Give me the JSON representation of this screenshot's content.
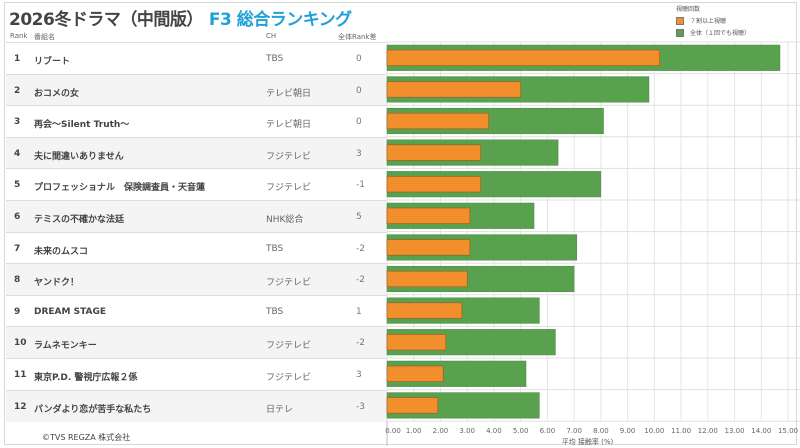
{
  "title": {
    "main": "2026冬ドラマ（中間版）",
    "accent": "F3 総合ランキング"
  },
  "columns": {
    "rank": "Rank",
    "name": "番組名",
    "ch": "CH",
    "diff": "全体Rank差"
  },
  "footer": "©TVS REGZA 株式会社",
  "colors": {
    "accent": "#1ea0d8",
    "orange": "#f28e2b",
    "green": "#59a14f"
  },
  "rows": [
    {
      "rank": "1",
      "name": "リブート",
      "ch": "TBS",
      "diff": "0"
    },
    {
      "rank": "2",
      "name": "おコメの女",
      "ch": "テレビ朝日",
      "diff": "0"
    },
    {
      "rank": "3",
      "name": "再会～Silent Truth～",
      "ch": "テレビ朝日",
      "diff": "0"
    },
    {
      "rank": "4",
      "name": "夫に間違いありません",
      "ch": "フジテレビ",
      "diff": "3"
    },
    {
      "rank": "5",
      "name": "プロフェッショナル　保険調査員・天音蓮",
      "ch": "フジテレビ",
      "diff": "-1"
    },
    {
      "rank": "6",
      "name": "テミスの不確かな法廷",
      "ch": "NHK総合",
      "diff": "5"
    },
    {
      "rank": "7",
      "name": "未来のムスコ",
      "ch": "TBS",
      "diff": "-2"
    },
    {
      "rank": "8",
      "name": "ヤンドク！",
      "ch": "フジテレビ",
      "diff": "-2"
    },
    {
      "rank": "9",
      "name": "DREAM STAGE",
      "ch": "TBS",
      "diff": "1"
    },
    {
      "rank": "10",
      "name": "ラムネモンキー",
      "ch": "フジテレビ",
      "diff": "-2"
    },
    {
      "rank": "11",
      "name": "東京P.D. 警視庁広報２係",
      "ch": "フジテレビ",
      "diff": "3"
    },
    {
      "rank": "12",
      "name": "パンダより恋が苦手な私たち",
      "ch": "日テレ",
      "diff": "-3"
    }
  ],
  "chart_data": {
    "type": "bar",
    "orientation": "horizontal",
    "categories": [
      "リブート",
      "おコメの女",
      "再会～Silent Truth～",
      "夫に間違いありません",
      "プロフェッショナル　保険調査員・天音蓮",
      "テミスの不確かな法廷",
      "未来のムスコ",
      "ヤンドク！",
      "DREAM STAGE",
      "ラムネモンキー",
      "東京P.D. 警視庁広報２係",
      "パンダより恋が苦手な私たち"
    ],
    "legend_title": "視聴回数",
    "legend_placement": "top-right",
    "series": [
      {
        "name": "全体（１回でも視聴）",
        "color": "#59a14f",
        "values": [
          14.7,
          9.8,
          8.1,
          6.4,
          8.0,
          5.5,
          7.1,
          7.0,
          5.7,
          6.3,
          5.2,
          5.7
        ]
      },
      {
        "name": "７割以上視聴",
        "color": "#f28e2b",
        "values": [
          10.2,
          5.0,
          3.8,
          3.5,
          3.5,
          3.1,
          3.1,
          3.0,
          2.8,
          2.2,
          2.1,
          1.9
        ]
      }
    ],
    "xlabel": "平均 接触率 (%)",
    "xlim": [
      0,
      15
    ],
    "xticks": [
      "0.00",
      "1.00",
      "2.00",
      "3.00",
      "4.00",
      "5.00",
      "6.00",
      "7.00",
      "8.00",
      "9.00",
      "10.00",
      "11.00",
      "12.00",
      "13.00",
      "14.00",
      "15.00"
    ],
    "grid": true
  }
}
